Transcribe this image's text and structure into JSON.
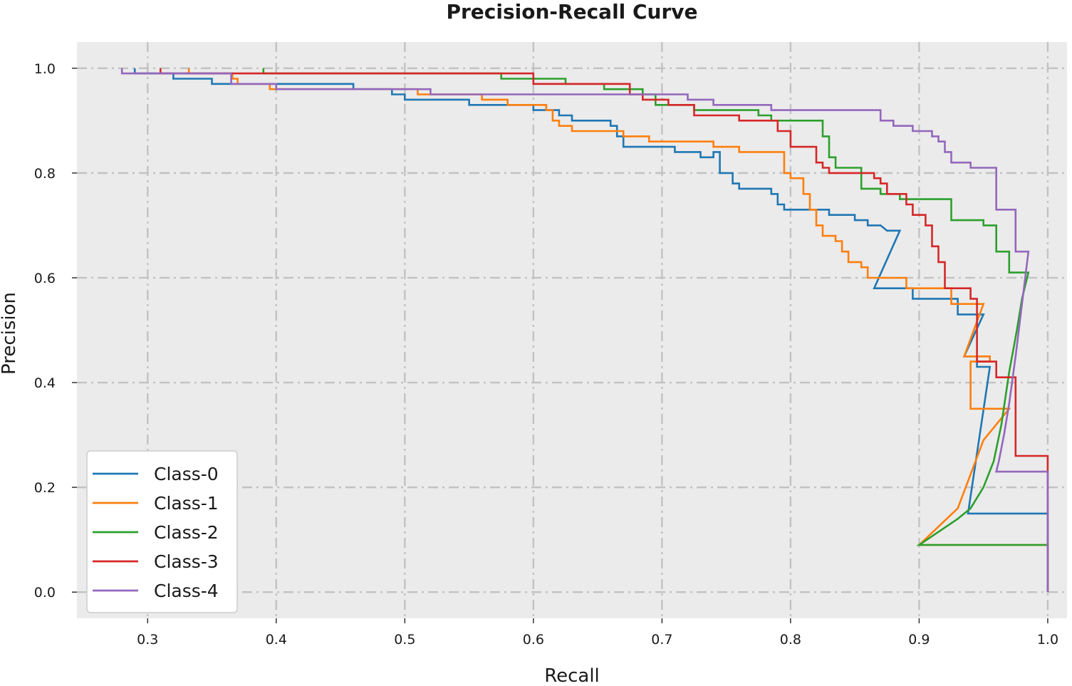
{
  "chart_data": {
    "type": "line",
    "title": "Precision-Recall Curve",
    "xlabel": "Recall",
    "ylabel": "Precision",
    "xlim": [
      0.245,
      1.015
    ],
    "ylim": [
      -0.05,
      1.05
    ],
    "xticks": [
      0.3,
      0.4,
      0.5,
      0.6,
      0.7,
      0.8,
      0.9,
      1.0
    ],
    "xtick_labels": [
      "0.3",
      "0.4",
      "0.5",
      "0.6",
      "0.7",
      "0.8",
      "0.9",
      "1.0"
    ],
    "yticks": [
      0.0,
      0.2,
      0.4,
      0.6,
      0.8,
      1.0
    ],
    "ytick_labels": [
      "0.0",
      "0.2",
      "0.4",
      "0.6",
      "0.8",
      "1.0"
    ],
    "grid": true,
    "legend_position": "lower-left",
    "series": [
      {
        "name": "Class-0",
        "color": "#1f77b4",
        "points": [
          [
            0.29,
            1.0
          ],
          [
            0.29,
            0.99
          ],
          [
            0.32,
            0.99
          ],
          [
            0.32,
            0.98
          ],
          [
            0.35,
            0.98
          ],
          [
            0.35,
            0.97
          ],
          [
            0.46,
            0.97
          ],
          [
            0.46,
            0.96
          ],
          [
            0.49,
            0.96
          ],
          [
            0.49,
            0.95
          ],
          [
            0.5,
            0.95
          ],
          [
            0.5,
            0.94
          ],
          [
            0.55,
            0.94
          ],
          [
            0.55,
            0.93
          ],
          [
            0.6,
            0.93
          ],
          [
            0.6,
            0.92
          ],
          [
            0.62,
            0.92
          ],
          [
            0.62,
            0.91
          ],
          [
            0.63,
            0.91
          ],
          [
            0.63,
            0.9
          ],
          [
            0.66,
            0.9
          ],
          [
            0.66,
            0.89
          ],
          [
            0.665,
            0.89
          ],
          [
            0.665,
            0.87
          ],
          [
            0.67,
            0.87
          ],
          [
            0.67,
            0.85
          ],
          [
            0.71,
            0.85
          ],
          [
            0.71,
            0.84
          ],
          [
            0.73,
            0.84
          ],
          [
            0.73,
            0.83
          ],
          [
            0.74,
            0.83
          ],
          [
            0.74,
            0.84
          ],
          [
            0.745,
            0.84
          ],
          [
            0.745,
            0.8
          ],
          [
            0.755,
            0.8
          ],
          [
            0.755,
            0.78
          ],
          [
            0.76,
            0.78
          ],
          [
            0.76,
            0.77
          ],
          [
            0.785,
            0.77
          ],
          [
            0.785,
            0.76
          ],
          [
            0.79,
            0.76
          ],
          [
            0.79,
            0.74
          ],
          [
            0.795,
            0.74
          ],
          [
            0.795,
            0.73
          ],
          [
            0.83,
            0.73
          ],
          [
            0.83,
            0.72
          ],
          [
            0.85,
            0.72
          ],
          [
            0.85,
            0.71
          ],
          [
            0.86,
            0.71
          ],
          [
            0.86,
            0.7
          ],
          [
            0.87,
            0.7
          ],
          [
            0.875,
            0.69
          ],
          [
            0.885,
            0.69
          ],
          [
            0.865,
            0.58
          ],
          [
            0.895,
            0.58
          ],
          [
            0.895,
            0.56
          ],
          [
            0.93,
            0.56
          ],
          [
            0.93,
            0.53
          ],
          [
            0.95,
            0.53
          ],
          [
            0.935,
            0.45
          ],
          [
            0.945,
            0.45
          ],
          [
            0.945,
            0.43
          ],
          [
            0.955,
            0.43
          ],
          [
            0.938,
            0.15
          ],
          [
            1.0,
            0.15
          ],
          [
            1.0,
            0.0
          ]
        ]
      },
      {
        "name": "Class-1",
        "color": "#ff7f0e",
        "points": [
          [
            0.332,
            1.0
          ],
          [
            0.332,
            0.99
          ],
          [
            0.366,
            0.99
          ],
          [
            0.366,
            0.98
          ],
          [
            0.37,
            0.98
          ],
          [
            0.37,
            0.97
          ],
          [
            0.395,
            0.97
          ],
          [
            0.395,
            0.96
          ],
          [
            0.51,
            0.96
          ],
          [
            0.51,
            0.95
          ],
          [
            0.56,
            0.95
          ],
          [
            0.56,
            0.94
          ],
          [
            0.58,
            0.94
          ],
          [
            0.58,
            0.93
          ],
          [
            0.61,
            0.93
          ],
          [
            0.61,
            0.92
          ],
          [
            0.615,
            0.92
          ],
          [
            0.615,
            0.9
          ],
          [
            0.62,
            0.9
          ],
          [
            0.62,
            0.89
          ],
          [
            0.63,
            0.89
          ],
          [
            0.63,
            0.88
          ],
          [
            0.67,
            0.88
          ],
          [
            0.67,
            0.87
          ],
          [
            0.69,
            0.87
          ],
          [
            0.69,
            0.86
          ],
          [
            0.74,
            0.86
          ],
          [
            0.74,
            0.85
          ],
          [
            0.76,
            0.85
          ],
          [
            0.76,
            0.84
          ],
          [
            0.795,
            0.84
          ],
          [
            0.795,
            0.8
          ],
          [
            0.8,
            0.8
          ],
          [
            0.8,
            0.79
          ],
          [
            0.81,
            0.79
          ],
          [
            0.81,
            0.76
          ],
          [
            0.815,
            0.76
          ],
          [
            0.815,
            0.73
          ],
          [
            0.82,
            0.73
          ],
          [
            0.82,
            0.7
          ],
          [
            0.825,
            0.7
          ],
          [
            0.825,
            0.68
          ],
          [
            0.835,
            0.68
          ],
          [
            0.835,
            0.67
          ],
          [
            0.84,
            0.67
          ],
          [
            0.84,
            0.65
          ],
          [
            0.845,
            0.65
          ],
          [
            0.845,
            0.63
          ],
          [
            0.855,
            0.63
          ],
          [
            0.855,
            0.62
          ],
          [
            0.86,
            0.62
          ],
          [
            0.86,
            0.6
          ],
          [
            0.89,
            0.6
          ],
          [
            0.89,
            0.58
          ],
          [
            0.925,
            0.58
          ],
          [
            0.925,
            0.55
          ],
          [
            0.95,
            0.55
          ],
          [
            0.935,
            0.45
          ],
          [
            0.955,
            0.45
          ],
          [
            0.955,
            0.44
          ],
          [
            0.94,
            0.44
          ],
          [
            0.94,
            0.35
          ],
          [
            0.97,
            0.35
          ],
          [
            0.95,
            0.29
          ],
          [
            0.93,
            0.16
          ],
          [
            0.9,
            0.09
          ],
          [
            1.0,
            0.09
          ],
          [
            1.0,
            0.0
          ]
        ]
      },
      {
        "name": "Class-2",
        "color": "#2ca02c",
        "points": [
          [
            0.39,
            1.0
          ],
          [
            0.39,
            0.99
          ],
          [
            0.575,
            0.99
          ],
          [
            0.575,
            0.98
          ],
          [
            0.625,
            0.98
          ],
          [
            0.625,
            0.97
          ],
          [
            0.655,
            0.97
          ],
          [
            0.655,
            0.96
          ],
          [
            0.685,
            0.96
          ],
          [
            0.685,
            0.95
          ],
          [
            0.695,
            0.95
          ],
          [
            0.695,
            0.93
          ],
          [
            0.725,
            0.93
          ],
          [
            0.725,
            0.92
          ],
          [
            0.775,
            0.92
          ],
          [
            0.775,
            0.91
          ],
          [
            0.785,
            0.91
          ],
          [
            0.785,
            0.9
          ],
          [
            0.825,
            0.9
          ],
          [
            0.825,
            0.87
          ],
          [
            0.83,
            0.87
          ],
          [
            0.83,
            0.83
          ],
          [
            0.835,
            0.83
          ],
          [
            0.835,
            0.81
          ],
          [
            0.855,
            0.81
          ],
          [
            0.855,
            0.77
          ],
          [
            0.87,
            0.77
          ],
          [
            0.87,
            0.76
          ],
          [
            0.885,
            0.76
          ],
          [
            0.885,
            0.75
          ],
          [
            0.925,
            0.75
          ],
          [
            0.925,
            0.71
          ],
          [
            0.95,
            0.71
          ],
          [
            0.95,
            0.7
          ],
          [
            0.96,
            0.7
          ],
          [
            0.96,
            0.65
          ],
          [
            0.97,
            0.65
          ],
          [
            0.97,
            0.61
          ],
          [
            0.985,
            0.61
          ],
          [
            0.98,
            0.56
          ],
          [
            0.976,
            0.5
          ],
          [
            0.97,
            0.42
          ],
          [
            0.964,
            0.32
          ],
          [
            0.958,
            0.25
          ],
          [
            0.95,
            0.2
          ],
          [
            0.94,
            0.16
          ],
          [
            0.93,
            0.14
          ],
          [
            0.9,
            0.09
          ],
          [
            1.0,
            0.09
          ],
          [
            1.0,
            0.0
          ]
        ]
      },
      {
        "name": "Class-3",
        "color": "#d62728",
        "points": [
          [
            0.31,
            1.0
          ],
          [
            0.31,
            0.99
          ],
          [
            0.6,
            0.99
          ],
          [
            0.6,
            0.98
          ],
          [
            0.6,
            0.98
          ],
          [
            0.6,
            0.97
          ],
          [
            0.675,
            0.97
          ],
          [
            0.675,
            0.95
          ],
          [
            0.685,
            0.95
          ],
          [
            0.685,
            0.94
          ],
          [
            0.705,
            0.94
          ],
          [
            0.705,
            0.93
          ],
          [
            0.725,
            0.93
          ],
          [
            0.725,
            0.91
          ],
          [
            0.76,
            0.91
          ],
          [
            0.76,
            0.9
          ],
          [
            0.79,
            0.9
          ],
          [
            0.79,
            0.88
          ],
          [
            0.8,
            0.88
          ],
          [
            0.8,
            0.85
          ],
          [
            0.82,
            0.85
          ],
          [
            0.82,
            0.82
          ],
          [
            0.825,
            0.82
          ],
          [
            0.825,
            0.81
          ],
          [
            0.83,
            0.81
          ],
          [
            0.83,
            0.8
          ],
          [
            0.865,
            0.8
          ],
          [
            0.865,
            0.79
          ],
          [
            0.87,
            0.79
          ],
          [
            0.87,
            0.78
          ],
          [
            0.875,
            0.78
          ],
          [
            0.875,
            0.76
          ],
          [
            0.89,
            0.76
          ],
          [
            0.89,
            0.74
          ],
          [
            0.895,
            0.74
          ],
          [
            0.895,
            0.72
          ],
          [
            0.905,
            0.72
          ],
          [
            0.905,
            0.7
          ],
          [
            0.91,
            0.7
          ],
          [
            0.91,
            0.66
          ],
          [
            0.915,
            0.66
          ],
          [
            0.915,
            0.63
          ],
          [
            0.92,
            0.63
          ],
          [
            0.92,
            0.58
          ],
          [
            0.94,
            0.58
          ],
          [
            0.94,
            0.56
          ],
          [
            0.945,
            0.56
          ],
          [
            0.945,
            0.44
          ],
          [
            0.96,
            0.44
          ],
          [
            0.96,
            0.41
          ],
          [
            0.975,
            0.41
          ],
          [
            0.975,
            0.26
          ],
          [
            1.0,
            0.26
          ],
          [
            1.0,
            0.0
          ]
        ]
      },
      {
        "name": "Class-4",
        "color": "#9467bd",
        "points": [
          [
            0.28,
            1.0
          ],
          [
            0.28,
            0.99
          ],
          [
            0.365,
            0.99
          ],
          [
            0.365,
            0.97
          ],
          [
            0.4,
            0.97
          ],
          [
            0.4,
            0.96
          ],
          [
            0.52,
            0.96
          ],
          [
            0.52,
            0.95
          ],
          [
            0.72,
            0.95
          ],
          [
            0.72,
            0.94
          ],
          [
            0.74,
            0.94
          ],
          [
            0.74,
            0.93
          ],
          [
            0.785,
            0.93
          ],
          [
            0.785,
            0.92
          ],
          [
            0.87,
            0.92
          ],
          [
            0.87,
            0.9
          ],
          [
            0.88,
            0.9
          ],
          [
            0.88,
            0.89
          ],
          [
            0.895,
            0.89
          ],
          [
            0.895,
            0.88
          ],
          [
            0.91,
            0.88
          ],
          [
            0.91,
            0.87
          ],
          [
            0.915,
            0.87
          ],
          [
            0.915,
            0.86
          ],
          [
            0.92,
            0.86
          ],
          [
            0.92,
            0.84
          ],
          [
            0.925,
            0.84
          ],
          [
            0.925,
            0.82
          ],
          [
            0.94,
            0.82
          ],
          [
            0.94,
            0.81
          ],
          [
            0.96,
            0.81
          ],
          [
            0.96,
            0.73
          ],
          [
            0.975,
            0.73
          ],
          [
            0.975,
            0.65
          ],
          [
            0.985,
            0.65
          ],
          [
            0.98,
            0.55
          ],
          [
            0.975,
            0.45
          ],
          [
            0.97,
            0.36
          ],
          [
            0.966,
            0.3
          ],
          [
            0.962,
            0.25
          ],
          [
            0.96,
            0.23
          ],
          [
            1.0,
            0.23
          ],
          [
            1.0,
            0.0
          ]
        ]
      }
    ]
  }
}
